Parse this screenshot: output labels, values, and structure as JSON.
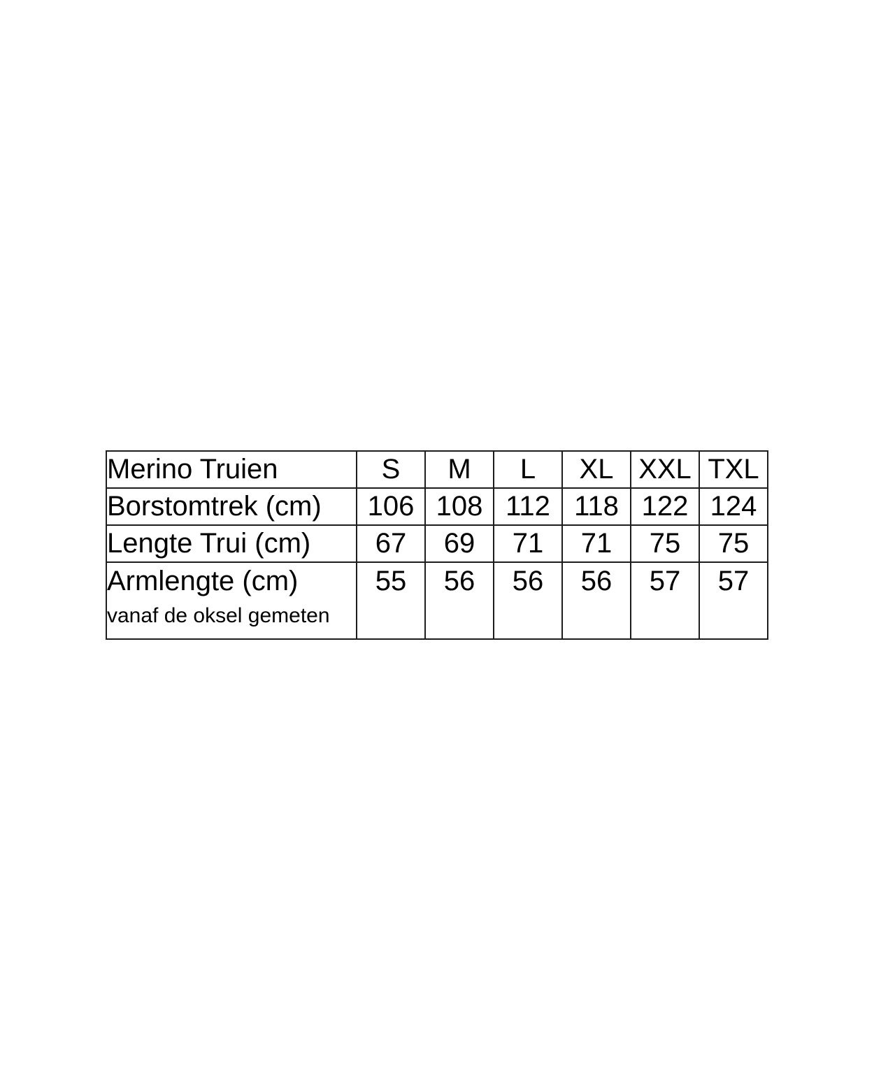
{
  "chart_data": {
    "type": "table",
    "title": "Merino Truien",
    "columns": [
      "S",
      "M",
      "L",
      "XL",
      "XXL",
      "TXL"
    ],
    "rows": [
      {
        "label": "Borstomtrek (cm)",
        "values": [
          106,
          108,
          112,
          118,
          122,
          124
        ]
      },
      {
        "label": "Lengte Trui (cm)",
        "values": [
          67,
          69,
          71,
          71,
          75,
          75
        ]
      },
      {
        "label": "Armlengte (cm)",
        "note": "vanaf de oksel gemeten",
        "values": [
          55,
          56,
          56,
          56,
          57,
          57
        ]
      }
    ],
    "layout": {
      "grid": "on",
      "border_color": "#1d1d1d",
      "text_color": "#000000",
      "background_color": "#ffffff"
    }
  }
}
